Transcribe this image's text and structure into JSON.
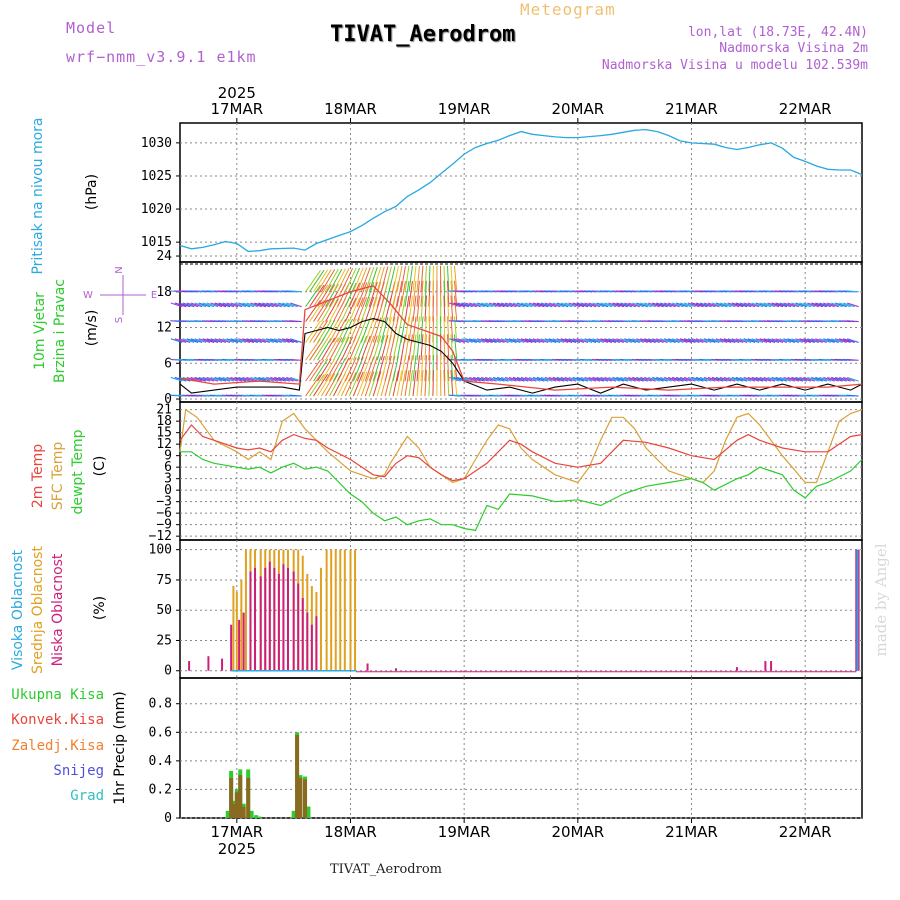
{
  "header": {
    "model_label": "Model",
    "model_name": "wrf−nmm_v3.9.1  e1km",
    "meteogram_label": "Meteogram",
    "title": "TIVAT_Aerodrom",
    "lonlat": "lon,lat (18.73E, 42.4N)",
    "elevation": "Nadmorska Visina 2m",
    "model_elevation": "Nadmorska Visina u modelu 102.539m"
  },
  "footer": {
    "station": "TIVAT_Aerodrom"
  },
  "watermark": "made by Angel",
  "colors": {
    "pressure": "#29a9e0",
    "temp2m": "#e8453c",
    "sfc_temp": "#d9a23a",
    "dewpoint": "#2ccc2c",
    "high_cloud": "#29a9e0",
    "mid_cloud": "#e0a020",
    "low_cloud": "#cc1f7a",
    "label_purple": "#b060d0",
    "meteogram_orange": "#f0c070"
  },
  "chart_data": [
    {
      "type": "line",
      "panel": "pressure",
      "ylabel_side": "Pritisak na nivou mora",
      "unit": "(hPa)",
      "x_axis": {
        "year_top": "2025",
        "year_bottom": "2025",
        "tick_labels": [
          "17MAR",
          "18MAR",
          "19MAR",
          "20MAR",
          "21MAR",
          "22MAR"
        ],
        "tick_days": [
          17,
          18,
          19,
          20,
          21,
          22
        ],
        "xlim_days": [
          16.5,
          22.5
        ]
      },
      "yticks": [
        1015,
        1020,
        1025,
        1030
      ],
      "ylim": [
        1012,
        1033
      ],
      "series": [
        {
          "x": [
            16.5,
            16.6,
            16.7,
            16.8,
            16.9,
            17.0,
            17.1,
            17.2,
            17.3,
            17.5,
            17.6,
            17.7,
            17.8,
            17.9,
            18.0,
            18.1,
            18.2,
            18.3,
            18.4,
            18.5,
            18.6,
            18.7,
            18.8,
            18.9,
            19.0,
            19.1,
            19.2,
            19.3,
            19.4,
            19.5,
            19.6,
            19.7,
            19.8,
            19.9,
            20.0,
            20.2,
            20.3,
            20.4,
            20.5,
            20.6,
            20.7,
            20.8,
            20.9,
            21.0,
            21.2,
            21.3,
            21.4,
            21.5,
            21.6,
            21.7,
            21.8,
            21.9,
            22.0,
            22.1,
            22.2,
            22.3,
            22.4,
            22.5
          ],
          "y": [
            1014.5,
            1014.0,
            1014.2,
            1014.6,
            1015.1,
            1014.8,
            1013.6,
            1013.7,
            1014.0,
            1014.1,
            1013.8,
            1014.8,
            1015.4,
            1016.0,
            1016.6,
            1017.5,
            1018.6,
            1019.6,
            1020.4,
            1021.9,
            1022.9,
            1024.0,
            1025.4,
            1026.8,
            1028.3,
            1029.3,
            1029.9,
            1030.4,
            1031.1,
            1031.7,
            1031.3,
            1031.1,
            1030.9,
            1030.8,
            1030.8,
            1031.1,
            1031.3,
            1031.6,
            1031.9,
            1032.0,
            1031.7,
            1031.1,
            1030.3,
            1030.0,
            1029.8,
            1029.3,
            1029.0,
            1029.3,
            1029.7,
            1030.0,
            1029.2,
            1027.8,
            1027.2,
            1026.5,
            1026.0,
            1025.9,
            1025.9,
            1025.2
          ]
        }
      ]
    },
    {
      "type": "line",
      "panel": "wind",
      "ylabel_side": [
        "10m Vjetar",
        "Brzina i Pravac"
      ],
      "unit": "(m/s)",
      "compass": {
        "north": "N",
        "south": "S",
        "east": "E",
        "west": "W"
      },
      "yticks": [
        0,
        6,
        12,
        18,
        24
      ],
      "ylim": [
        -0.5,
        23
      ],
      "series": [
        {
          "name": "speed",
          "x": [
            16.5,
            16.6,
            16.8,
            17.0,
            17.2,
            17.4,
            17.55,
            17.6,
            17.7,
            17.8,
            17.9,
            18.0,
            18.1,
            18.2,
            18.3,
            18.4,
            18.5,
            18.6,
            18.7,
            18.8,
            18.9,
            19.0,
            19.2,
            19.4,
            19.6,
            19.8,
            20.0,
            20.2,
            20.4,
            20.6,
            20.8,
            21.0,
            21.2,
            21.4,
            21.6,
            21.8,
            22.0,
            22.2,
            22.4,
            22.5
          ],
          "y": [
            2.5,
            1.0,
            1.5,
            2.0,
            2.0,
            2.0,
            1.5,
            11.0,
            11.5,
            12.0,
            11.5,
            12.0,
            13.0,
            13.5,
            13.0,
            11.0,
            10.0,
            9.5,
            9.0,
            8.0,
            6.0,
            3.0,
            1.5,
            2.0,
            1.0,
            2.0,
            2.5,
            1.0,
            2.5,
            1.5,
            2.0,
            2.5,
            1.5,
            2.5,
            1.5,
            2.5,
            1.5,
            2.5,
            1.5,
            2.5
          ]
        },
        {
          "name": "gust",
          "x": [
            16.5,
            16.8,
            17.2,
            17.55,
            17.6,
            17.8,
            18.0,
            18.2,
            18.35,
            18.5,
            18.65,
            18.8,
            18.9,
            19.0,
            19.3,
            19.8,
            20.3,
            20.8,
            21.3,
            21.8,
            22.2,
            22.5
          ],
          "y": [
            3.5,
            2.5,
            3.0,
            2.5,
            15.0,
            16.5,
            18.0,
            19.0,
            16.0,
            12.5,
            11.5,
            10.5,
            8.0,
            3.0,
            2.5,
            1.5,
            2.0,
            1.5,
            2.0,
            2.0,
            2.0,
            2.5
          ]
        }
      ]
    },
    {
      "type": "line",
      "panel": "temperature",
      "labels": [
        "2m Temp",
        "SFC Temp",
        "dewpt Temp"
      ],
      "unit": "(C)",
      "yticks": [
        -12,
        -9,
        -6,
        -3,
        0,
        3,
        6,
        9,
        12,
        15,
        18,
        21
      ],
      "ylim": [
        -13,
        23
      ],
      "series": [
        {
          "name": "2m Temp",
          "x": [
            16.5,
            16.6,
            16.7,
            16.8,
            17.0,
            17.1,
            17.2,
            17.3,
            17.4,
            17.5,
            17.6,
            17.7,
            17.8,
            18.0,
            18.2,
            18.3,
            18.4,
            18.5,
            18.6,
            18.7,
            18.8,
            18.9,
            19.0,
            19.1,
            19.2,
            19.3,
            19.4,
            19.5,
            19.6,
            19.8,
            20.0,
            20.2,
            20.4,
            20.6,
            20.8,
            21.0,
            21.2,
            21.4,
            21.5,
            21.6,
            21.8,
            22.0,
            22.2,
            22.4,
            22.5
          ],
          "y": [
            13,
            17,
            14,
            13,
            11,
            10.5,
            11,
            10,
            13,
            14.5,
            13.5,
            13,
            11,
            8,
            4,
            3.5,
            7,
            9,
            8.5,
            6,
            4,
            2.5,
            3,
            5,
            7,
            10,
            13,
            12,
            10,
            7,
            6,
            7,
            13,
            12.5,
            11,
            9,
            8,
            13,
            14.5,
            13,
            11,
            10,
            10,
            14,
            14.5
          ]
        },
        {
          "name": "SFC Temp",
          "x": [
            16.5,
            16.55,
            16.65,
            16.8,
            17.0,
            17.1,
            17.2,
            17.3,
            17.4,
            17.5,
            17.6,
            17.7,
            17.8,
            18.0,
            18.2,
            18.3,
            18.35,
            18.5,
            18.6,
            18.7,
            18.8,
            18.9,
            19.0,
            19.1,
            19.2,
            19.3,
            19.4,
            19.5,
            19.6,
            19.8,
            20.0,
            20.1,
            20.2,
            20.3,
            20.4,
            20.5,
            20.6,
            20.8,
            21.0,
            21.1,
            21.2,
            21.3,
            21.4,
            21.5,
            21.6,
            21.8,
            22.0,
            22.1,
            22.2,
            22.3,
            22.4,
            22.5
          ],
          "y": [
            10,
            21,
            19,
            13,
            10,
            8,
            10,
            8,
            18,
            20,
            16,
            13,
            10,
            5,
            3,
            4,
            7,
            14,
            11,
            6,
            4,
            2,
            3,
            8,
            13,
            17,
            16,
            11,
            8,
            4,
            2,
            6,
            13,
            19,
            19,
            16,
            11,
            5,
            3,
            2,
            5,
            13,
            19,
            20,
            17,
            9,
            2,
            2,
            10,
            18,
            20,
            21
          ]
        },
        {
          "name": "dewpt Temp",
          "x": [
            16.5,
            16.6,
            16.7,
            16.8,
            17.0,
            17.1,
            17.2,
            17.3,
            17.4,
            17.5,
            17.6,
            17.7,
            17.8,
            17.9,
            18.0,
            18.1,
            18.2,
            18.3,
            18.4,
            18.5,
            18.6,
            18.7,
            18.8,
            18.9,
            19.0,
            19.1,
            19.2,
            19.3,
            19.4,
            19.6,
            19.8,
            20.0,
            20.2,
            20.4,
            20.6,
            20.8,
            21.0,
            21.1,
            21.2,
            21.4,
            21.5,
            21.6,
            21.7,
            21.8,
            21.9,
            22.0,
            22.1,
            22.2,
            22.4,
            22.5
          ],
          "y": [
            10,
            10,
            8,
            7,
            6,
            5.5,
            6,
            4.5,
            6,
            7,
            5.5,
            6,
            5,
            2,
            -1,
            -3,
            -6,
            -8,
            -7,
            -9,
            -8,
            -7.5,
            -9,
            -9,
            -10,
            -10.5,
            -4,
            -5,
            -1,
            -1.5,
            -3,
            -2.5,
            -4,
            -1,
            1,
            2,
            3,
            2,
            0,
            3,
            4,
            6,
            5,
            4,
            0,
            -2,
            1,
            2,
            5,
            8
          ]
        }
      ]
    },
    {
      "type": "bar",
      "panel": "cloud_cover",
      "labels": [
        "Visoka Oblacnost",
        "Srednja Oblacnost",
        "Niska Oblacnost"
      ],
      "unit": "(%)",
      "yticks": [
        0,
        25,
        50,
        75,
        100
      ],
      "ylim": [
        0,
        100
      ],
      "series": [
        {
          "name": "Srednja Oblacnost",
          "x": [
            16.97,
            17.0,
            17.04,
            17.08,
            17.12,
            17.16,
            17.21,
            17.25,
            17.29,
            17.33,
            17.37,
            17.41,
            17.45,
            17.5,
            17.54,
            17.58,
            17.62,
            17.66,
            17.7,
            17.74,
            17.79,
            17.83,
            17.87,
            17.91,
            17.95,
            18.0,
            18.04
          ],
          "values": [
            70,
            65,
            75,
            100,
            100,
            100,
            100,
            100,
            100,
            100,
            100,
            100,
            100,
            100,
            100,
            95,
            80,
            70,
            65,
            85,
            100,
            100,
            100,
            100,
            100,
            100,
            100
          ]
        },
        {
          "name": "Niska Oblacnost",
          "x": [
            16.58,
            16.75,
            16.87,
            16.95,
            17.02,
            17.06,
            17.12,
            17.16,
            17.21,
            17.25,
            17.29,
            17.33,
            17.37,
            17.41,
            17.45,
            17.5,
            17.54,
            17.58,
            17.62,
            17.66,
            17.7,
            18.15,
            18.4,
            21.4,
            21.65,
            21.7,
            22.45,
            22.47
          ],
          "values": [
            8,
            12,
            10,
            38,
            42,
            48,
            82,
            85,
            78,
            85,
            90,
            85,
            80,
            88,
            85,
            82,
            72,
            60,
            48,
            38,
            45,
            6,
            2,
            3,
            8,
            8,
            100,
            100
          ]
        },
        {
          "name": "Visoka Oblacnost",
          "x": [
            22.46
          ],
          "values": [
            100
          ]
        }
      ]
    },
    {
      "type": "bar",
      "panel": "precipitation",
      "labels": [
        "Ukupna Kisa",
        "Konvek.Kisa",
        "Zaledj.Kisa",
        "Snijeg",
        "Grad"
      ],
      "ylabel": "1hr Precip (mm)",
      "yticks": [
        0,
        0.2,
        0.4,
        0.6,
        0.8
      ],
      "ylim": [
        0,
        0.98
      ],
      "series": [
        {
          "name": "Ukupna Kisa",
          "x": [
            16.92,
            16.95,
            16.98,
            17.0,
            17.03,
            17.06,
            17.1,
            17.13,
            17.17,
            17.2,
            17.5,
            17.53,
            17.56,
            17.6,
            17.63
          ],
          "values": [
            0.05,
            0.33,
            0.12,
            0.2,
            0.34,
            0.1,
            0.34,
            0.05,
            0.02,
            0.01,
            0.05,
            0.6,
            0.3,
            0.29,
            0.08
          ]
        },
        {
          "name": "Konvek.Kisa",
          "x": [
            16.95,
            16.98,
            17.0,
            17.03,
            17.06,
            17.1,
            17.53,
            17.56,
            17.6
          ],
          "values": [
            0.28,
            0.1,
            0.18,
            0.3,
            0.08,
            0.28,
            0.58,
            0.28,
            0.27
          ]
        }
      ]
    }
  ]
}
